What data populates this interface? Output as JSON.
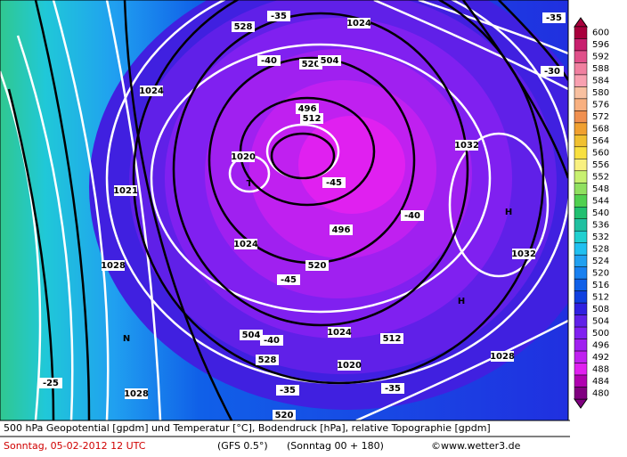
{
  "map": {
    "labels": [
      "-35",
      "528",
      "1024",
      "-40",
      "520",
      "504",
      "1024",
      "496",
      "512",
      "1020",
      "T",
      "-45",
      "1032",
      "H",
      "-40",
      "1021",
      "1024",
      "496",
      "1028",
      "520",
      "-45",
      "1032",
      "H",
      "N",
      "504",
      "-40",
      "1024",
      "512",
      "528",
      "1020",
      "1028",
      "-25",
      "1028",
      "-35",
      "-35",
      "520",
      "-30",
      "-35"
    ]
  },
  "legend": {
    "levels": [
      600,
      596,
      592,
      588,
      584,
      580,
      576,
      572,
      568,
      564,
      560,
      556,
      552,
      548,
      544,
      540,
      536,
      532,
      528,
      524,
      520,
      516,
      512,
      508,
      504,
      500,
      496,
      492,
      488,
      484,
      480
    ],
    "colors": [
      "#a8003c",
      "#c8206e",
      "#e0508a",
      "#f080a0",
      "#f8a0b0",
      "#f8c0a0",
      "#f8b080",
      "#f09050",
      "#f0a030",
      "#f0c030",
      "#f8e040",
      "#f8f080",
      "#c8f070",
      "#90e060",
      "#50d050",
      "#20c070",
      "#20c0a0",
      "#20d0d0",
      "#20c0f0",
      "#20a0f0",
      "#1880f0",
      "#1060e8",
      "#1040e0",
      "#3020e0",
      "#6020e8",
      "#8020f0",
      "#a020f0",
      "#c020f0",
      "#e020f0",
      "#b000b0",
      "#800080"
    ]
  },
  "footer": {
    "line1": "500 hPa Geopotential [gpdm] und Temperatur [°C], Bodendruck [hPa], relative Topographie [gpdm]",
    "date": "Sonntag, 05-02-2012  12 UTC",
    "model": "(GFS 0.5°)",
    "run": "(Sonntag 00 + 180)",
    "copyright": "©www.wetter3.de"
  }
}
